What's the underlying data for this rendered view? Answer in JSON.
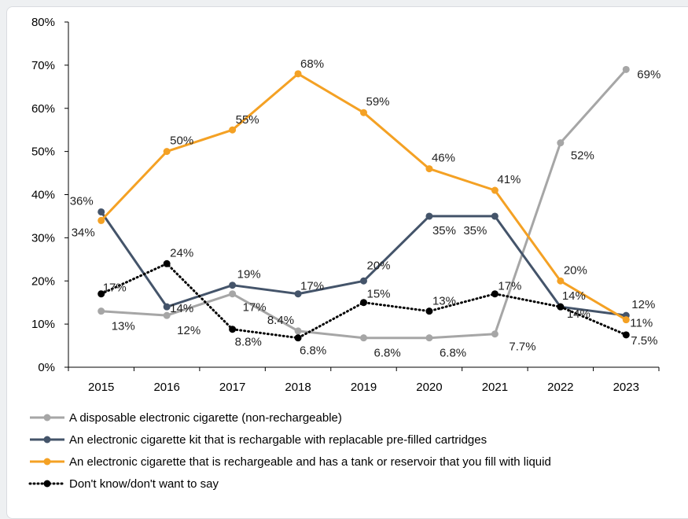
{
  "chart_data": {
    "type": "line",
    "title": "",
    "xlabel": "",
    "ylabel": "",
    "x": [
      "2015",
      "2016",
      "2017",
      "2018",
      "2019",
      "2020",
      "2021",
      "2022",
      "2023"
    ],
    "ylim": [
      0,
      80
    ],
    "yticks": [
      "0%",
      "10%",
      "20%",
      "30%",
      "40%",
      "50%",
      "60%",
      "70%",
      "80%"
    ],
    "grid": false,
    "legend_position": "bottom",
    "series": [
      {
        "name": "A disposable electronic cigarette (non-rechargeable)",
        "color": "#a6a6a6",
        "style": "solid",
        "values": [
          13,
          12,
          17,
          8.4,
          6.8,
          6.8,
          7.7,
          52,
          69
        ],
        "labels": [
          "13%",
          "12%",
          "17%",
          "8.4%",
          "6.8%",
          "6.8%",
          "7.7%",
          "52%",
          "69%"
        ]
      },
      {
        "name": "An electronic cigarette kit that is rechargable with replacable pre-filled cartridges",
        "color": "#44546a",
        "style": "solid",
        "values": [
          36,
          14,
          19,
          17,
          20,
          35,
          35,
          14,
          12
        ],
        "labels": [
          "36%",
          "14%",
          "19%",
          "17%",
          "20%",
          "35%",
          "35%",
          "14%",
          "12%"
        ]
      },
      {
        "name": "An electronic cigarette that is rechargeable and has a tank or reservoir that you fill with liquid",
        "color": "#f4a124",
        "style": "solid",
        "values": [
          34,
          50,
          55,
          68,
          59,
          46,
          41,
          20,
          11
        ],
        "labels": [
          "34%",
          "50%",
          "55%",
          "68%",
          "59%",
          "46%",
          "41%",
          "20%",
          "11%"
        ]
      },
      {
        "name": "Don't know/don't want to say",
        "color": "#000000",
        "style": "dotted",
        "values": [
          17,
          24,
          8.8,
          6.8,
          15,
          13,
          17,
          14,
          7.5
        ],
        "labels": [
          "17%",
          "24%",
          "8.8%",
          "6.8%",
          "15%",
          "13%",
          "17%",
          "14%",
          "7.5%"
        ]
      }
    ]
  }
}
